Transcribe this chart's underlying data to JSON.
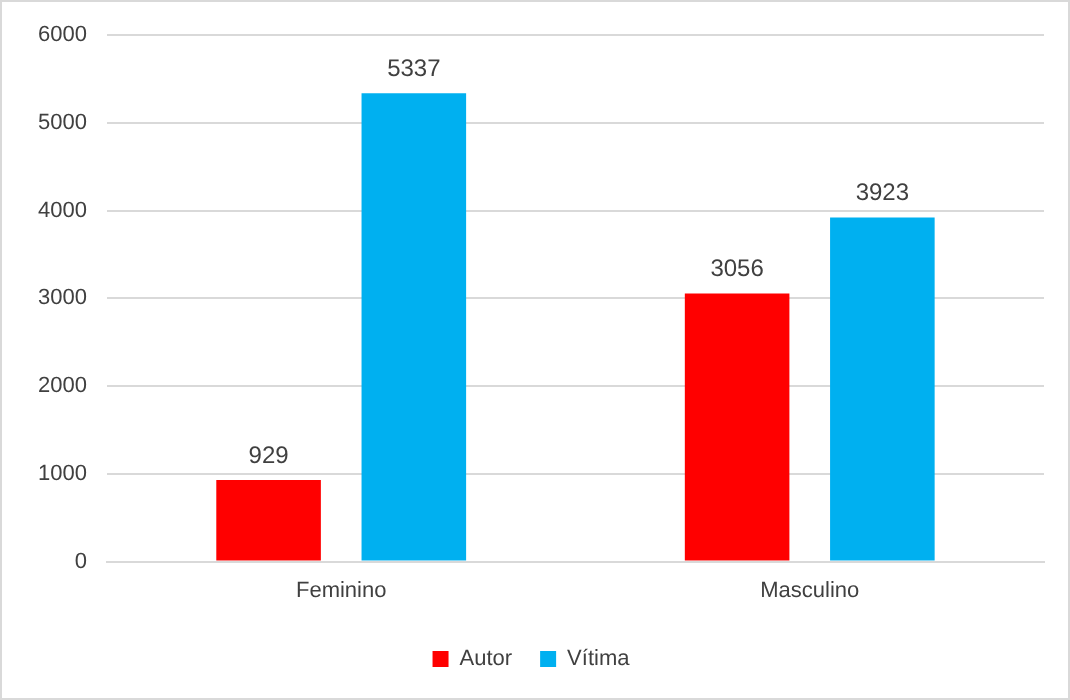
{
  "chart_data": {
    "type": "bar",
    "categories": [
      "Feminino",
      "Masculino"
    ],
    "series": [
      {
        "name": "Autor",
        "color": "#ff0000",
        "values": [
          929,
          3056
        ]
      },
      {
        "name": "Vítima",
        "color": "#00b0f0",
        "values": [
          5337,
          3923
        ]
      }
    ],
    "ylim": [
      0,
      6000
    ],
    "yticks": [
      0,
      1000,
      2000,
      3000,
      4000,
      5000,
      6000
    ],
    "grid": "y",
    "legend": "bottom",
    "data_labels": true
  }
}
